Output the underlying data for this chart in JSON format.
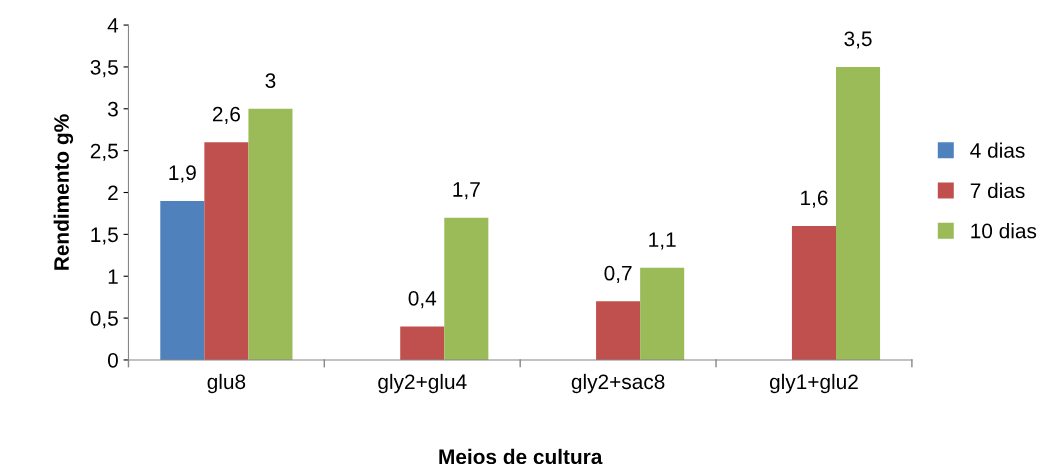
{
  "chart_data": {
    "type": "bar",
    "xlabel": "Meios de cultura",
    "ylabel": "Rendimento g%",
    "categories": [
      "glu8",
      "gly2+glu4",
      "gly2+sac8",
      "gly1+glu2"
    ],
    "series": [
      {
        "name": "4 dias",
        "color": "#4f81bd",
        "values": [
          1.9,
          null,
          null,
          null
        ],
        "value_labels": [
          "1,9",
          null,
          null,
          null
        ]
      },
      {
        "name": "7 dias",
        "color": "#c0504d",
        "values": [
          2.6,
          0.4,
          0.7,
          1.6
        ],
        "value_labels": [
          "2,6",
          "0,4",
          "0,7",
          "1,6"
        ]
      },
      {
        "name": "10 dias",
        "color": "#9bbb59",
        "values": [
          3,
          1.7,
          1.1,
          3.5
        ],
        "value_labels": [
          "3",
          "1,7",
          "1,1",
          "3,5"
        ]
      }
    ],
    "ylim": [
      0,
      4
    ],
    "yticks": [
      0,
      {
        "value": 0.5,
        "label": "0,5"
      },
      1,
      {
        "value": 1.5,
        "label": "1,5"
      },
      2,
      {
        "value": 2.5,
        "label": "2,5"
      },
      3,
      {
        "value": 3.5,
        "label": "3,5"
      },
      4
    ],
    "grid": false,
    "legend": "right"
  }
}
